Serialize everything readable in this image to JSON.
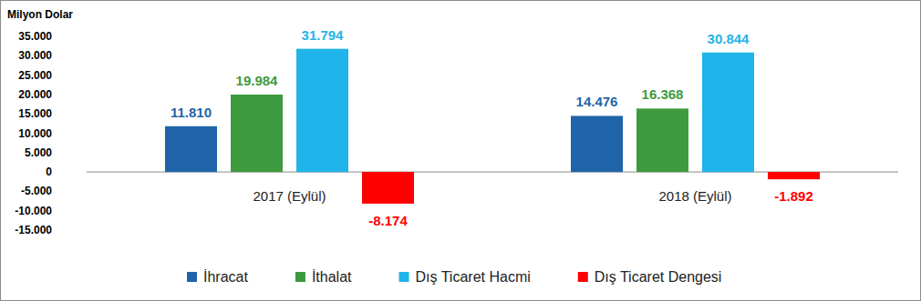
{
  "chart_data": {
    "type": "bar",
    "y_label": "Milyon Dolar",
    "categories": [
      "2017 (Eylül)",
      "2018 (Eylül)"
    ],
    "series": [
      {
        "name": "İhracat",
        "color": "#1f64a8",
        "values": [
          11810,
          14476
        ],
        "value_labels": [
          "11.810",
          "14.476"
        ]
      },
      {
        "name": "İthalat",
        "color": "#3e9a3e",
        "values": [
          19984,
          16368
        ],
        "value_labels": [
          "19.984",
          "16.368"
        ]
      },
      {
        "name": "Dış Ticaret Hacmi",
        "color": "#1fb4ea",
        "values": [
          31794,
          30844
        ],
        "value_labels": [
          "31.794",
          "30.844"
        ]
      },
      {
        "name": "Dış Ticaret Dengesi",
        "color": "#ff0000",
        "values": [
          -8174,
          -1892
        ],
        "value_labels": [
          "-8.174",
          "-1.892"
        ]
      }
    ],
    "ylim": [
      -15000,
      35000
    ],
    "yticks": [
      {
        "value": 35000,
        "label": "35.000"
      },
      {
        "value": 30000,
        "label": "30.000"
      },
      {
        "value": 25000,
        "label": "25.000"
      },
      {
        "value": 20000,
        "label": "20.000"
      },
      {
        "value": 15000,
        "label": "15.000"
      },
      {
        "value": 10000,
        "label": "10.000"
      },
      {
        "value": 5000,
        "label": "5.000"
      },
      0,
      {
        "value": -5000,
        "label": "-5.000"
      },
      {
        "value": -10000,
        "label": "-10.000"
      },
      {
        "value": -15000,
        "label": "-15.000"
      }
    ],
    "grid": false,
    "data_labels": true,
    "legend": "bottom"
  }
}
